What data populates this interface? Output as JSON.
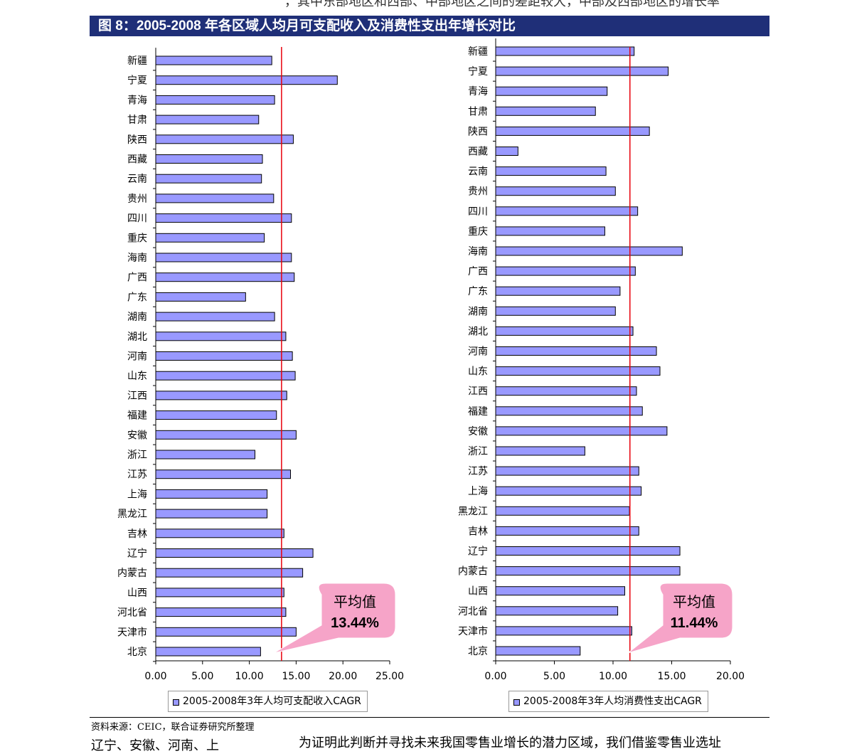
{
  "page": {
    "top_fragment": "，其中东部地区和西部、中部地区之间的差距较大，中部及西部地区的增长率",
    "figure_title": "图 8：2005-2008 年各区域人均月可支配收入及消费性支出年增长对比",
    "source_note": "资料来源：CEIC，联合证券研究所整理",
    "bottom_fragment_left": "辽宁、安徽、河南、上",
    "bottom_fragment_right": "为证明此判断并寻找未来我国零售业增长的潜力区域，我们借鉴零售业选址"
  },
  "colors": {
    "bar_fill": "#9999ff",
    "bar_stroke": "#000000",
    "average_line": "#e8000b",
    "callout_fill": "#f6a4c8",
    "banner_bg": "#1f2f78"
  },
  "chart_data": [
    {
      "type": "bar",
      "orientation": "horizontal",
      "categories": [
        "新疆",
        "宁夏",
        "青海",
        "甘肃",
        "陕西",
        "西藏",
        "云南",
        "贵州",
        "四川",
        "重庆",
        "海南",
        "广西",
        "广东",
        "湖南",
        "湖北",
        "河南",
        "山东",
        "江西",
        "福建",
        "安徽",
        "浙江",
        "江苏",
        "上海",
        "黑龙江",
        "吉林",
        "辽宁",
        "内蒙古",
        "山西",
        "河北省",
        "天津市",
        "北京"
      ],
      "series": [
        {
          "name": "2005-2008年3年人均可支配收入CAGR",
          "values": [
            12.4,
            19.4,
            12.7,
            11.0,
            14.7,
            11.4,
            11.3,
            12.6,
            14.5,
            11.6,
            14.5,
            14.8,
            9.6,
            12.7,
            13.9,
            14.6,
            14.9,
            14.0,
            12.9,
            15.0,
            10.6,
            14.4,
            11.9,
            11.9,
            13.7,
            16.8,
            15.7,
            13.7,
            13.9,
            15.0,
            11.2
          ]
        }
      ],
      "average": {
        "value": 13.44,
        "title": "平均值",
        "label": "13.44%"
      },
      "xlim": [
        0,
        25
      ],
      "xticks": [
        "0.00",
        "5.00",
        "10.00",
        "15.00",
        "20.00",
        "25.00"
      ],
      "legend": "bottom",
      "grid": false
    },
    {
      "type": "bar",
      "orientation": "horizontal",
      "categories": [
        "新疆",
        "宁夏",
        "青海",
        "甘肃",
        "陕西",
        "西藏",
        "云南",
        "贵州",
        "四川",
        "重庆",
        "海南",
        "广西",
        "广东",
        "湖南",
        "湖北",
        "河南",
        "山东",
        "江西",
        "福建",
        "安徽",
        "浙江",
        "江苏",
        "上海",
        "黑龙江",
        "吉林",
        "辽宁",
        "内蒙古",
        "山西",
        "河北省",
        "天津市",
        "北京"
      ],
      "series": [
        {
          "name": "2005-2008年3年人均消费性支出CAGR",
          "values": [
            11.8,
            14.7,
            9.5,
            8.5,
            13.1,
            1.9,
            9.4,
            10.2,
            12.1,
            9.3,
            15.9,
            11.9,
            10.6,
            10.2,
            11.7,
            13.7,
            14.0,
            12.0,
            12.5,
            14.6,
            7.6,
            12.2,
            12.4,
            11.4,
            12.2,
            15.7,
            15.7,
            11.0,
            10.4,
            11.6,
            7.2
          ]
        }
      ],
      "average": {
        "value": 11.44,
        "title": "平均值",
        "label": "11.44%"
      },
      "xlim": [
        0,
        20
      ],
      "xticks": [
        "0.00",
        "5.00",
        "10.00",
        "15.00",
        "20.00"
      ],
      "legend": "bottom",
      "grid": false
    }
  ]
}
